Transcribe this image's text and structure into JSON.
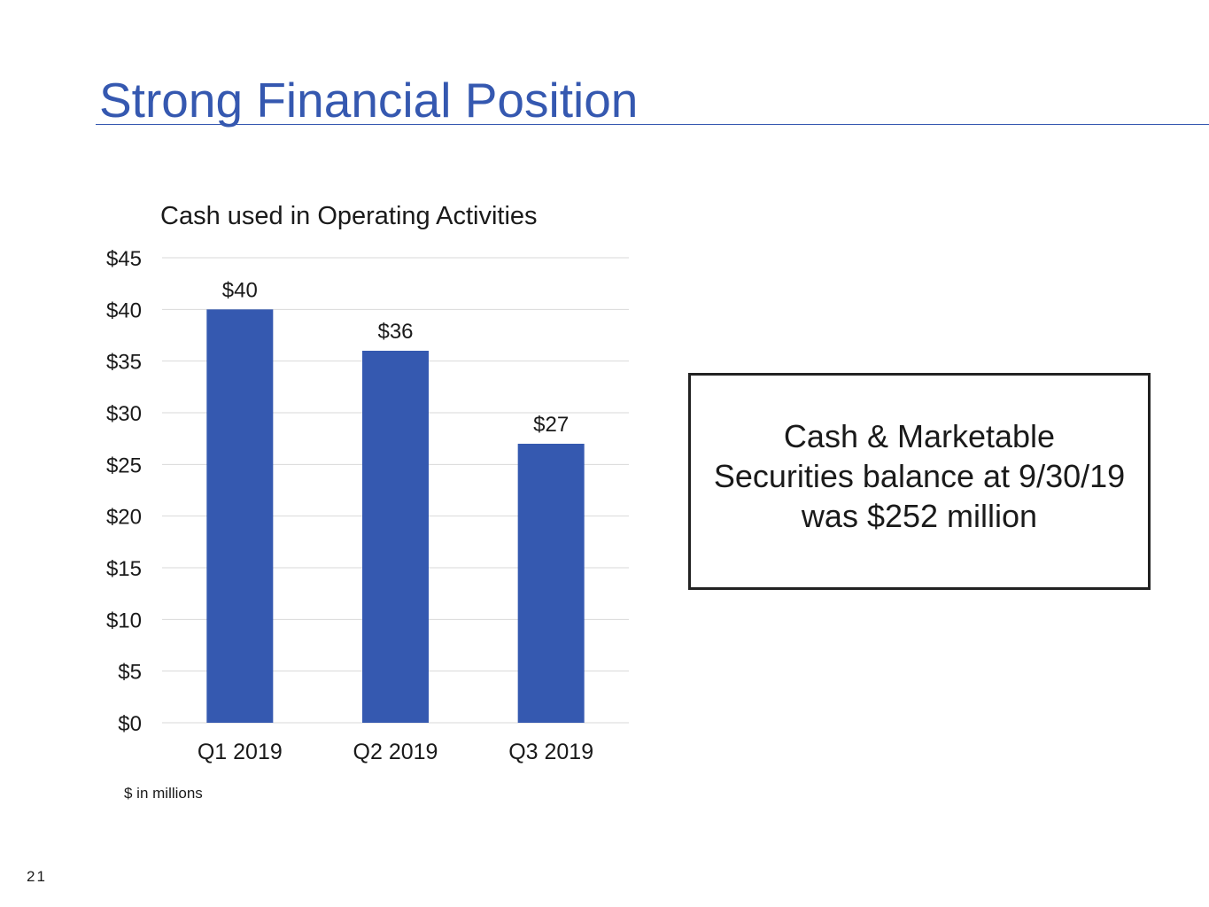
{
  "slide": {
    "title": "Strong Financial Position",
    "units_note": "$ in millions",
    "page_number": "21"
  },
  "callout": {
    "lines": [
      "Cash & Marketable",
      "Securities balance at 9/30/19",
      "was $252 million"
    ]
  },
  "colors": {
    "accent": "#3558b0",
    "bar": "#3559b0",
    "gridline": "#d9d9d9"
  },
  "chart_data": {
    "type": "bar",
    "title": "Cash used in Operating Activities",
    "categories": [
      "Q1 2019",
      "Q2 2019",
      "Q3 2019"
    ],
    "values": [
      40,
      36,
      27
    ],
    "data_labels": [
      "$40",
      "$36",
      "$27"
    ],
    "y_ticks": [
      "$0",
      "$5",
      "$10",
      "$15",
      "$20",
      "$25",
      "$30",
      "$35",
      "$40",
      "$45"
    ],
    "ylim": [
      0,
      45
    ],
    "y_step": 5,
    "grid": true,
    "legend": "none"
  }
}
